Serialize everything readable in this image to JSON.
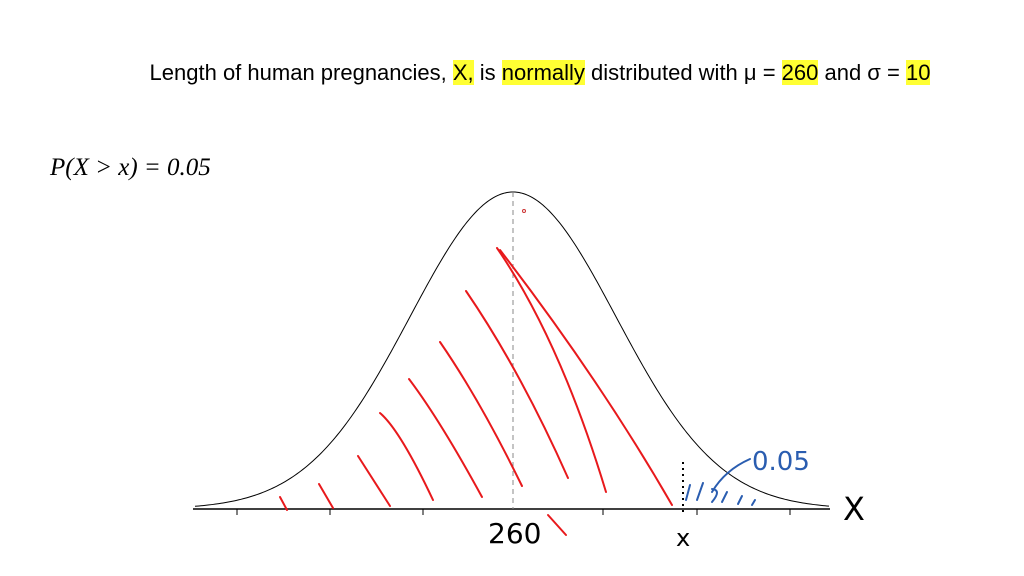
{
  "header": {
    "segments": [
      "Length of human pregnancies, ",
      "X,",
      " is ",
      "normally",
      " distributed with μ = ",
      "260",
      " and σ = ",
      "10"
    ]
  },
  "formula": "P(X > x) = 0.05",
  "annotations": {
    "tail_area": "0.05",
    "mean_label": "260",
    "cutoff_label": "x",
    "axis_label": "X"
  }
}
